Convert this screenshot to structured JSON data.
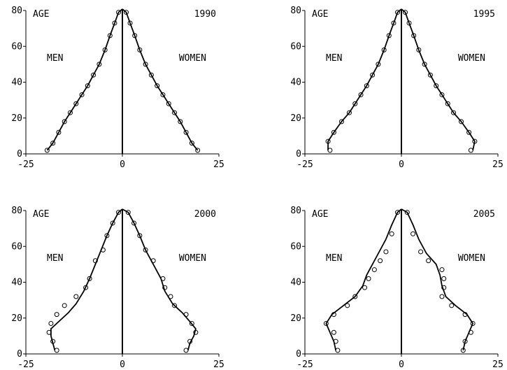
{
  "chart_data": [
    {
      "type": "line",
      "title": "1990",
      "xlabel": "",
      "ylabel": "AGE",
      "left_label": "MEN",
      "right_label": "WOMEN",
      "xlim": [
        -25,
        25
      ],
      "ylim": [
        0,
        80
      ],
      "xticks": [
        "-25",
        "0",
        "25"
      ],
      "yticks": [
        "0",
        "20",
        "40",
        "60",
        "80"
      ],
      "grid": false,
      "series": [
        {
          "side": "men",
          "style": "line",
          "x": [
            -19.5,
            -18,
            -16.5,
            -15,
            -13.5,
            -12,
            -10.5,
            -9,
            -7.5,
            -6,
            -4.5,
            -3.2,
            -2,
            -1
          ],
          "y": [
            2,
            6,
            12,
            18,
            23,
            28,
            33,
            38,
            44,
            50,
            58,
            66,
            73,
            79
          ]
        },
        {
          "side": "men",
          "style": "points",
          "x": [
            -19.5,
            -18,
            -16.5,
            -15,
            -13.5,
            -12,
            -10.5,
            -9,
            -7.5,
            -6,
            -4.5,
            -3.2,
            -2,
            -1
          ],
          "y": [
            2,
            6,
            12,
            18,
            23,
            28,
            33,
            38,
            44,
            50,
            58,
            66,
            73,
            79
          ]
        },
        {
          "side": "women",
          "style": "line",
          "x": [
            19.5,
            18,
            16.5,
            15,
            13.5,
            12,
            10.5,
            9,
            7.5,
            6,
            4.5,
            3.2,
            2,
            1
          ],
          "y": [
            2,
            6,
            12,
            18,
            23,
            28,
            33,
            38,
            44,
            50,
            58,
            66,
            73,
            79
          ]
        },
        {
          "side": "women",
          "style": "points",
          "x": [
            19.5,
            18,
            16.5,
            15,
            13.5,
            12,
            10.5,
            9,
            7.5,
            6,
            4.5,
            3.2,
            2,
            1
          ],
          "y": [
            2,
            6,
            12,
            18,
            23,
            28,
            33,
            38,
            44,
            50,
            58,
            66,
            73,
            79
          ]
        }
      ]
    },
    {
      "type": "line",
      "title": "1995",
      "xlabel": "",
      "ylabel": "AGE",
      "left_label": "MEN",
      "right_label": "WOMEN",
      "xlim": [
        -25,
        25
      ],
      "ylim": [
        0,
        80
      ],
      "xticks": [
        "-25",
        "0",
        "25"
      ],
      "yticks": [
        "0",
        "20",
        "40",
        "60",
        "80"
      ],
      "grid": false,
      "series": [
        {
          "side": "men",
          "style": "line",
          "x": [
            -19,
            -19,
            -17.5,
            -15.5,
            -13.5,
            -12,
            -10.5,
            -9,
            -7.5,
            -6,
            -4.5,
            -3.2,
            -2,
            -1
          ],
          "y": [
            2,
            7,
            12,
            18,
            23,
            28,
            33,
            38,
            44,
            50,
            58,
            66,
            73,
            79
          ]
        },
        {
          "side": "men",
          "style": "points",
          "x": [
            -18.5,
            -19,
            -17.5,
            -15.5,
            -13.5,
            -12,
            -10.5,
            -9,
            -7.5,
            -6,
            -4.5,
            -3.2,
            -2,
            -1
          ],
          "y": [
            2,
            7,
            12,
            18,
            23,
            28,
            33,
            38,
            44,
            50,
            58,
            66,
            73,
            79
          ]
        },
        {
          "side": "women",
          "style": "line",
          "x": [
            18.5,
            19,
            17.5,
            15.5,
            13.5,
            12,
            10.5,
            9,
            7.5,
            6,
            4.5,
            3.2,
            2,
            1
          ],
          "y": [
            2,
            7,
            12,
            18,
            23,
            28,
            33,
            38,
            44,
            50,
            58,
            66,
            73,
            79
          ]
        },
        {
          "side": "women",
          "style": "points",
          "x": [
            18,
            19,
            17.5,
            15.5,
            13.5,
            12,
            10.5,
            9,
            7.5,
            6,
            4.5,
            3.2,
            2,
            1
          ],
          "y": [
            2,
            7,
            12,
            18,
            23,
            28,
            33,
            38,
            44,
            50,
            58,
            66,
            73,
            79
          ]
        }
      ]
    },
    {
      "type": "line",
      "title": "2000",
      "xlabel": "",
      "ylabel": "AGE",
      "left_label": "MEN",
      "right_label": "WOMEN",
      "xlim": [
        -25,
        25
      ],
      "ylim": [
        0,
        80
      ],
      "xticks": [
        "-25",
        "0",
        "25"
      ],
      "yticks": [
        "0",
        "20",
        "40",
        "60",
        "80"
      ],
      "grid": false,
      "series": [
        {
          "side": "men",
          "style": "line",
          "x": [
            -17.5,
            -18,
            -18.5,
            -18.5,
            -16.5,
            -14,
            -12,
            -10,
            -8.5,
            -7,
            -5.5,
            -4,
            -2.5,
            -1
          ],
          "y": [
            2,
            6,
            10,
            14,
            18,
            23,
            28,
            35,
            42,
            50,
            58,
            66,
            73,
            79
          ]
        },
        {
          "side": "men",
          "style": "points",
          "x": [
            -17,
            -18,
            -19,
            -18.5,
            -17,
            -15,
            -12,
            -9.5,
            -8.5,
            -7,
            -5,
            -4,
            -2.5,
            -1
          ],
          "y": [
            2,
            7,
            12,
            17,
            22,
            27,
            32,
            37,
            42,
            52,
            58,
            66,
            73,
            79
          ]
        },
        {
          "side": "women",
          "style": "line",
          "x": [
            17,
            17.5,
            18.5,
            19,
            17.5,
            15.5,
            13,
            11,
            10,
            8,
            6,
            4.5,
            3,
            1.5
          ],
          "y": [
            2,
            6,
            10,
            14,
            18,
            23,
            28,
            35,
            42,
            50,
            58,
            66,
            73,
            79
          ]
        },
        {
          "side": "women",
          "style": "points",
          "x": [
            16.5,
            17.5,
            19,
            18,
            16.5,
            13.5,
            12.5,
            11,
            10.5,
            8,
            6,
            4.5,
            3,
            1.5
          ],
          "y": [
            2,
            7,
            12,
            17,
            22,
            27,
            32,
            37,
            42,
            52,
            58,
            66,
            73,
            79
          ]
        }
      ]
    },
    {
      "type": "line",
      "title": "2005",
      "xlabel": "",
      "ylabel": "AGE",
      "left_label": "MEN",
      "right_label": "WOMEN",
      "xlim": [
        -25,
        25
      ],
      "ylim": [
        0,
        80
      ],
      "xticks": [
        "-25",
        "0",
        "25"
      ],
      "yticks": [
        "0",
        "20",
        "40",
        "60",
        "80"
      ],
      "grid": false,
      "series": [
        {
          "side": "men",
          "style": "line",
          "x": [
            -17,
            -17.5,
            -18.5,
            -19.5,
            -18,
            -15,
            -12,
            -10,
            -9,
            -7.5,
            -6,
            -4,
            -2.5,
            -1
          ],
          "y": [
            2,
            7,
            12,
            17,
            22,
            27,
            32,
            38,
            44,
            50,
            56,
            64,
            72,
            79
          ]
        },
        {
          "side": "men",
          "style": "points",
          "x": [
            -16.5,
            -17,
            -17.5,
            -19.5,
            -17.5,
            -14,
            -12,
            -9.5,
            -8.5,
            -7,
            -5.5,
            -4,
            -2.5,
            -1
          ],
          "y": [
            2,
            7,
            12,
            17,
            22,
            27,
            32,
            37,
            42,
            47,
            52,
            57,
            67,
            79
          ]
        },
        {
          "side": "women",
          "style": "line",
          "x": [
            16,
            16.5,
            17.5,
            18.5,
            17,
            14,
            11.5,
            10.5,
            10,
            9,
            6.5,
            4.5,
            3,
            1.5
          ],
          "y": [
            2,
            7,
            12,
            17,
            22,
            27,
            32,
            38,
            44,
            50,
            56,
            64,
            72,
            79
          ]
        },
        {
          "side": "women",
          "style": "points",
          "x": [
            16,
            16.5,
            18,
            18.5,
            16.5,
            13,
            10.5,
            11,
            11,
            10.5,
            7,
            5,
            3,
            1.5
          ],
          "y": [
            2,
            7,
            12,
            17,
            22,
            27,
            32,
            37,
            42,
            47,
            52,
            57,
            67,
            79
          ]
        }
      ]
    }
  ]
}
